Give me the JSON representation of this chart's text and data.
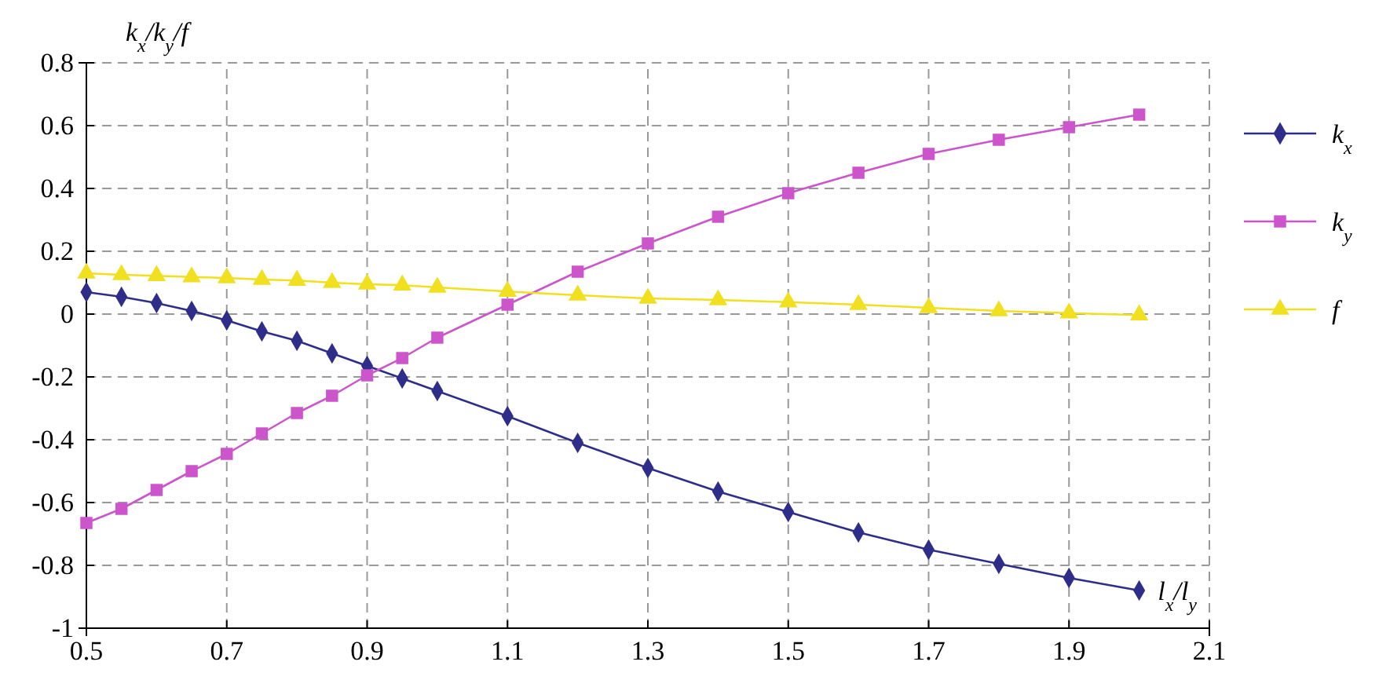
{
  "chart_data": {
    "type": "line",
    "xlabel": "l$_{x}$/l$_{y}$",
    "ylabel": "k$_{x}$/k$_{y}$/f",
    "x": [
      0.5,
      0.55,
      0.6,
      0.65,
      0.7,
      0.75,
      0.8,
      0.85,
      0.9,
      0.95,
      1.0,
      1.1,
      1.2,
      1.3,
      1.4,
      1.5,
      1.6,
      1.7,
      1.8,
      1.9,
      2.0
    ],
    "series": [
      {
        "name": "k$_{x}$",
        "color": "#2e2e8a",
        "marker": "diamond",
        "values": [
          0.07,
          0.055,
          0.035,
          0.01,
          -0.02,
          -0.055,
          -0.085,
          -0.125,
          -0.165,
          -0.205,
          -0.245,
          -0.325,
          -0.41,
          -0.49,
          -0.565,
          -0.63,
          -0.695,
          -0.75,
          -0.795,
          -0.84,
          -0.88
        ]
      },
      {
        "name": "k$_{y}$",
        "color": "#cc55cc",
        "marker": "square",
        "values": [
          -0.665,
          -0.62,
          -0.56,
          -0.5,
          -0.445,
          -0.38,
          -0.315,
          -0.26,
          -0.195,
          -0.14,
          -0.075,
          0.03,
          0.135,
          0.225,
          0.31,
          0.385,
          0.45,
          0.51,
          0.555,
          0.595,
          0.635
        ]
      },
      {
        "name": "f",
        "color": "#f0e020",
        "marker": "triangle",
        "values": [
          0.13,
          0.125,
          0.122,
          0.118,
          0.115,
          0.11,
          0.107,
          0.1,
          0.095,
          0.092,
          0.085,
          0.072,
          0.06,
          0.05,
          0.045,
          0.038,
          0.03,
          0.02,
          0.01,
          0.003,
          -0.003
        ]
      }
    ],
    "xlim": [
      0.5,
      2.1
    ],
    "xticks": [
      0.5,
      0.7,
      0.9,
      1.1,
      1.3,
      1.5,
      1.7,
      1.9,
      2.1
    ],
    "ylim": [
      -1,
      0.8
    ],
    "yticks": [
      -1,
      -0.8,
      -0.6,
      -0.4,
      -0.2,
      0,
      0.2,
      0.4,
      0.6,
      0.8
    ],
    "grid": true,
    "legend": "right",
    "line_style": "solid"
  }
}
